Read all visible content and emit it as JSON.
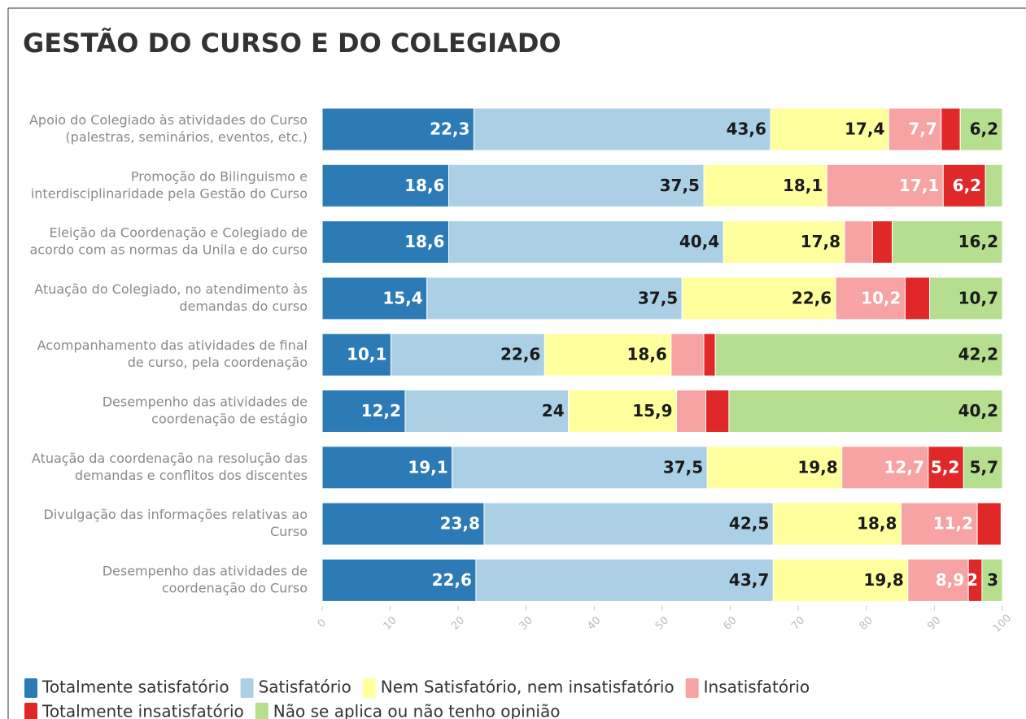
{
  "chart_data": {
    "type": "stacked_bar_horizontal",
    "title": "GESTÃO DO CURSO E DO COLEGIADO",
    "categories": [
      [
        "Apoio do Colegiado às atividades do Curso",
        "(palestras, seminários, eventos, etc.)"
      ],
      [
        "Promoção do Bilinguismo e",
        "interdisciplinaridade pela Gestão do Curso"
      ],
      [
        "Eleição da Coordenação e Colegiado de",
        "acordo com as normas da Unila e do curso"
      ],
      [
        "Atuação do Colegiado, no atendimento às",
        "demandas do curso"
      ],
      [
        "Acompanhamento das atividades de final",
        "de curso, pela coordenação"
      ],
      [
        "Desempenho das atividades de",
        "coordenação de estágio"
      ],
      [
        "Atuação da coordenação na resolução das",
        "demandas e conflitos dos discentes"
      ],
      [
        "Divulgação das informações relativas ao",
        "Curso"
      ],
      [
        "Desempenho das atividades de",
        "coordenação do Curso"
      ]
    ],
    "series": [
      {
        "name": "Totalmente satisfatório",
        "color": "#2c7bb6",
        "label_color": "#ffffff",
        "values": [
          22.3,
          18.6,
          18.6,
          15.4,
          10.1,
          12.2,
          19.1,
          23.8,
          22.6
        ],
        "value_labels": [
          "22,3",
          "18,6",
          "18,6",
          "15,4",
          "10,1",
          "12,2",
          "19,1",
          "23,8",
          "22,6"
        ]
      },
      {
        "name": "Satisfatório",
        "color": "#abd0e6",
        "label_color": "#1a1a1a",
        "values": [
          43.6,
          37.5,
          40.4,
          37.5,
          22.6,
          24,
          37.5,
          42.5,
          43.7
        ],
        "value_labels": [
          "43,6",
          "37,5",
          "40,4",
          "37,5",
          "22,6",
          "24",
          "37,5",
          "42,5",
          "43,7"
        ]
      },
      {
        "name": "Nem Satisfatório, nem insatisfatório",
        "color": "#ffff9e",
        "label_color": "#1a1a1a",
        "values": [
          17.4,
          18.1,
          17.8,
          22.6,
          18.6,
          15.9,
          19.8,
          18.8,
          19.8
        ],
        "value_labels": [
          "17,4",
          "18,1",
          "17,8",
          "22,6",
          "18,6",
          "15,9",
          "19,8",
          "18,8",
          "19,8"
        ]
      },
      {
        "name": "Insatisfatório",
        "color": "#f7a3a3",
        "label_color": "#ffffff",
        "values": [
          7.7,
          17.1,
          4.1,
          10.2,
          4.8,
          4.3,
          12.7,
          11.2,
          8.9
        ],
        "value_labels": [
          "7,7",
          "17,1",
          null,
          "10,2",
          null,
          null,
          "12,7",
          "11,2",
          "8,9"
        ]
      },
      {
        "name": "Totalmente insatisfatório",
        "color": "#e02828",
        "label_color": "#ffffff",
        "values": [
          2.8,
          6.2,
          2.9,
          3.6,
          1.7,
          3.4,
          5.2,
          3.5,
          2
        ],
        "value_labels": [
          null,
          "6,2",
          null,
          null,
          null,
          null,
          "5,2",
          null,
          "2"
        ]
      },
      {
        "name": "Não se aplica ou não tenho opinião",
        "color": "#b5de8f",
        "label_color": "#1a1a1a",
        "values": [
          6.2,
          2.5,
          16.2,
          10.7,
          42.2,
          40.2,
          5.7,
          null,
          3
        ],
        "value_labels": [
          "6,2",
          null,
          "16,2",
          "10,7",
          "42,2",
          "40,2",
          "5,7",
          null,
          "3"
        ]
      }
    ],
    "xlim": [
      0,
      100
    ],
    "xticks": [
      0,
      10,
      20,
      30,
      40,
      50,
      60,
      70,
      80,
      90,
      100
    ]
  }
}
